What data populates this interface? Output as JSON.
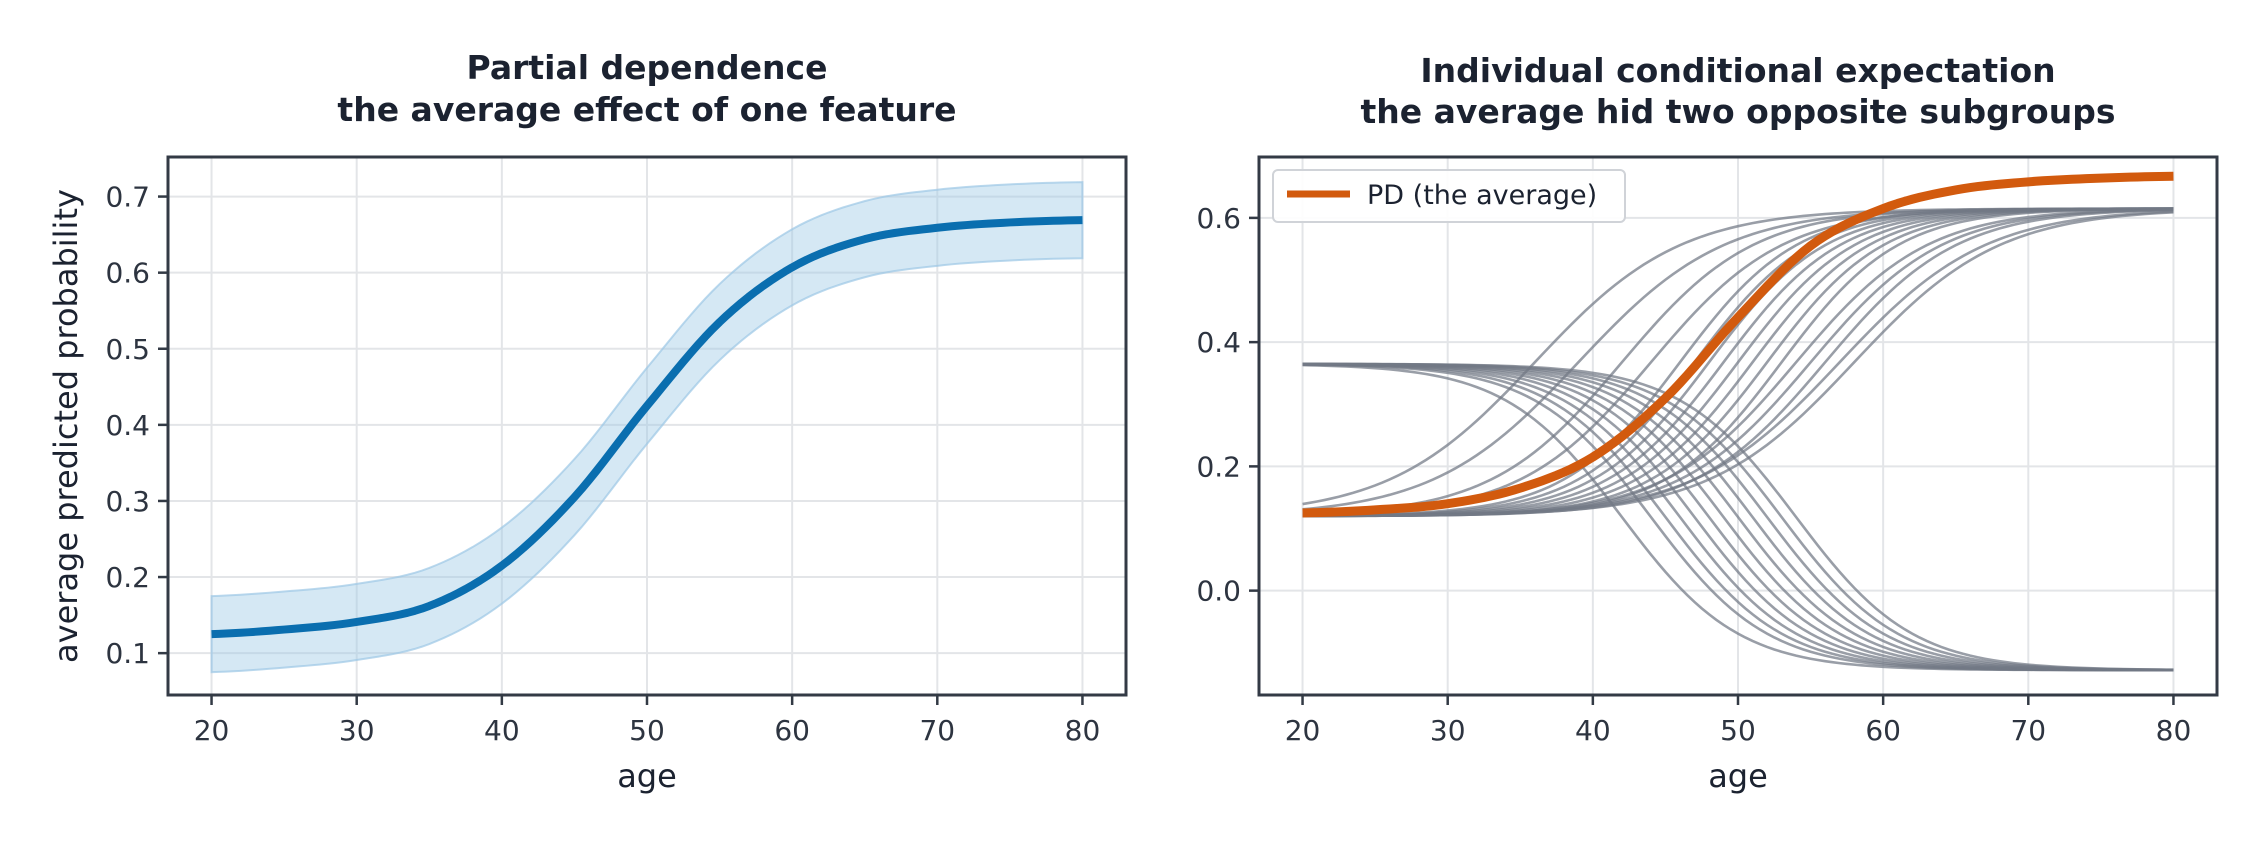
{
  "chart_data": [
    {
      "type": "line",
      "title": [
        "Partial dependence",
        "the average effect of one feature"
      ],
      "xlabel": "age",
      "ylabel": "average predicted probability",
      "xlim": [
        17,
        83
      ],
      "ylim": [
        0.045,
        0.752
      ],
      "xticks": [
        20,
        30,
        40,
        50,
        60,
        70,
        80
      ],
      "yticks": [
        0.1,
        0.2,
        0.3,
        0.4,
        0.5,
        0.6,
        0.7
      ],
      "ytick_labels": [
        "0.1",
        "0.2",
        "0.3",
        "0.4",
        "0.5",
        "0.6",
        "0.7"
      ],
      "grid": true,
      "series": [
        {
          "color": "#0a6eaf",
          "x": [
            20,
            25,
            30,
            35,
            40,
            45,
            50,
            55,
            60,
            65,
            70,
            75,
            80
          ],
          "y": [
            0.125,
            0.131,
            0.141,
            0.162,
            0.215,
            0.305,
            0.425,
            0.535,
            0.607,
            0.644,
            0.659,
            0.666,
            0.669
          ],
          "band_low": [
            0.075,
            0.081,
            0.091,
            0.112,
            0.165,
            0.255,
            0.375,
            0.485,
            0.557,
            0.594,
            0.609,
            0.616,
            0.619
          ],
          "band_high": [
            0.175,
            0.181,
            0.191,
            0.212,
            0.265,
            0.355,
            0.475,
            0.585,
            0.657,
            0.694,
            0.709,
            0.716,
            0.719
          ],
          "band_color": "#9cc8e5"
        }
      ]
    },
    {
      "type": "line",
      "title": [
        "Individual conditional expectation",
        "the average hid two opposite subgroups"
      ],
      "xlabel": "age",
      "ylabel": "",
      "xlim": [
        17,
        83
      ],
      "ylim": [
        -0.168,
        0.698
      ],
      "xticks": [
        20,
        30,
        40,
        50,
        60,
        70,
        80
      ],
      "yticks": [
        0.0,
        0.2,
        0.4,
        0.6
      ],
      "ytick_labels": [
        "0.0",
        "0.2",
        "0.4",
        "0.6"
      ],
      "grid": true,
      "legend": {
        "position": "top-left",
        "entries": [
          {
            "label": "PD (the average)",
            "color": "#d25a0e"
          }
        ]
      },
      "ice_rising": {
        "color": "#727885",
        "low": 0.12,
        "high": 0.615,
        "midpoints": [
          36,
          39,
          42,
          44,
          46,
          47,
          48,
          49,
          50,
          51,
          52,
          53,
          54,
          55,
          56,
          57,
          58
        ],
        "widths": [
          5,
          5,
          4.5,
          4.5,
          4,
          4,
          4,
          4,
          4,
          4,
          4,
          4,
          4.5,
          4.5,
          4.5,
          5,
          5
        ]
      },
      "ice_falling": {
        "color": "#727885",
        "high": 0.365,
        "low": -0.128,
        "midpoints": [
          42,
          44,
          45,
          46,
          47,
          48,
          49,
          50,
          51,
          52,
          53,
          54
        ],
        "widths": [
          4,
          4,
          4,
          4,
          4,
          4,
          4,
          4,
          4,
          4,
          4,
          4
        ]
      },
      "series": [
        {
          "name": "PD (the average)",
          "color": "#d25a0e",
          "x": [
            20,
            25,
            30,
            35,
            40,
            45,
            50,
            55,
            60,
            65,
            70,
            75,
            80
          ],
          "y": [
            0.125,
            0.13,
            0.14,
            0.165,
            0.215,
            0.31,
            0.44,
            0.555,
            0.615,
            0.645,
            0.658,
            0.664,
            0.667
          ]
        }
      ]
    }
  ]
}
